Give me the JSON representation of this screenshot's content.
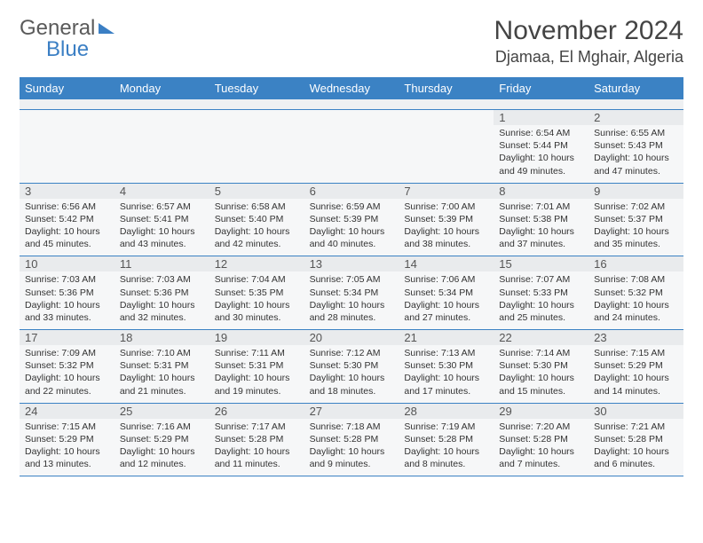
{
  "logo": {
    "part1": "General",
    "part2": "Blue"
  },
  "title": "November 2024",
  "location": "Djamaa, El Mghair, Algeria",
  "colors": {
    "header_bg": "#3b82c4",
    "header_text": "#ffffff",
    "cell_bg": "#f6f7f8",
    "daynum_bg": "#e9ebed",
    "border": "#3b82c4",
    "text": "#333333"
  },
  "weekdays": [
    "Sunday",
    "Monday",
    "Tuesday",
    "Wednesday",
    "Thursday",
    "Friday",
    "Saturday"
  ],
  "weeks": [
    [
      null,
      null,
      null,
      null,
      null,
      {
        "n": "1",
        "sr": "6:54 AM",
        "ss": "5:44 PM",
        "dl": "10 hours and 49 minutes."
      },
      {
        "n": "2",
        "sr": "6:55 AM",
        "ss": "5:43 PM",
        "dl": "10 hours and 47 minutes."
      }
    ],
    [
      {
        "n": "3",
        "sr": "6:56 AM",
        "ss": "5:42 PM",
        "dl": "10 hours and 45 minutes."
      },
      {
        "n": "4",
        "sr": "6:57 AM",
        "ss": "5:41 PM",
        "dl": "10 hours and 43 minutes."
      },
      {
        "n": "5",
        "sr": "6:58 AM",
        "ss": "5:40 PM",
        "dl": "10 hours and 42 minutes."
      },
      {
        "n": "6",
        "sr": "6:59 AM",
        "ss": "5:39 PM",
        "dl": "10 hours and 40 minutes."
      },
      {
        "n": "7",
        "sr": "7:00 AM",
        "ss": "5:39 PM",
        "dl": "10 hours and 38 minutes."
      },
      {
        "n": "8",
        "sr": "7:01 AM",
        "ss": "5:38 PM",
        "dl": "10 hours and 37 minutes."
      },
      {
        "n": "9",
        "sr": "7:02 AM",
        "ss": "5:37 PM",
        "dl": "10 hours and 35 minutes."
      }
    ],
    [
      {
        "n": "10",
        "sr": "7:03 AM",
        "ss": "5:36 PM",
        "dl": "10 hours and 33 minutes."
      },
      {
        "n": "11",
        "sr": "7:03 AM",
        "ss": "5:36 PM",
        "dl": "10 hours and 32 minutes."
      },
      {
        "n": "12",
        "sr": "7:04 AM",
        "ss": "5:35 PM",
        "dl": "10 hours and 30 minutes."
      },
      {
        "n": "13",
        "sr": "7:05 AM",
        "ss": "5:34 PM",
        "dl": "10 hours and 28 minutes."
      },
      {
        "n": "14",
        "sr": "7:06 AM",
        "ss": "5:34 PM",
        "dl": "10 hours and 27 minutes."
      },
      {
        "n": "15",
        "sr": "7:07 AM",
        "ss": "5:33 PM",
        "dl": "10 hours and 25 minutes."
      },
      {
        "n": "16",
        "sr": "7:08 AM",
        "ss": "5:32 PM",
        "dl": "10 hours and 24 minutes."
      }
    ],
    [
      {
        "n": "17",
        "sr": "7:09 AM",
        "ss": "5:32 PM",
        "dl": "10 hours and 22 minutes."
      },
      {
        "n": "18",
        "sr": "7:10 AM",
        "ss": "5:31 PM",
        "dl": "10 hours and 21 minutes."
      },
      {
        "n": "19",
        "sr": "7:11 AM",
        "ss": "5:31 PM",
        "dl": "10 hours and 19 minutes."
      },
      {
        "n": "20",
        "sr": "7:12 AM",
        "ss": "5:30 PM",
        "dl": "10 hours and 18 minutes."
      },
      {
        "n": "21",
        "sr": "7:13 AM",
        "ss": "5:30 PM",
        "dl": "10 hours and 17 minutes."
      },
      {
        "n": "22",
        "sr": "7:14 AM",
        "ss": "5:30 PM",
        "dl": "10 hours and 15 minutes."
      },
      {
        "n": "23",
        "sr": "7:15 AM",
        "ss": "5:29 PM",
        "dl": "10 hours and 14 minutes."
      }
    ],
    [
      {
        "n": "24",
        "sr": "7:15 AM",
        "ss": "5:29 PM",
        "dl": "10 hours and 13 minutes."
      },
      {
        "n": "25",
        "sr": "7:16 AM",
        "ss": "5:29 PM",
        "dl": "10 hours and 12 minutes."
      },
      {
        "n": "26",
        "sr": "7:17 AM",
        "ss": "5:28 PM",
        "dl": "10 hours and 11 minutes."
      },
      {
        "n": "27",
        "sr": "7:18 AM",
        "ss": "5:28 PM",
        "dl": "10 hours and 9 minutes."
      },
      {
        "n": "28",
        "sr": "7:19 AM",
        "ss": "5:28 PM",
        "dl": "10 hours and 8 minutes."
      },
      {
        "n": "29",
        "sr": "7:20 AM",
        "ss": "5:28 PM",
        "dl": "10 hours and 7 minutes."
      },
      {
        "n": "30",
        "sr": "7:21 AM",
        "ss": "5:28 PM",
        "dl": "10 hours and 6 minutes."
      }
    ]
  ],
  "labels": {
    "sunrise": "Sunrise:",
    "sunset": "Sunset:",
    "daylight": "Daylight:"
  }
}
